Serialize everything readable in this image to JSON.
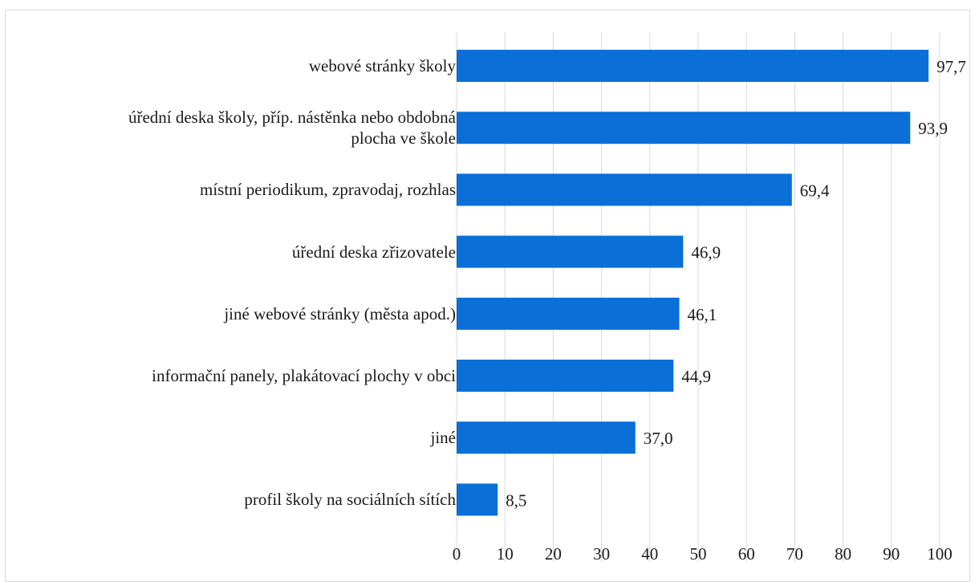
{
  "chart_data": {
    "type": "bar",
    "orientation": "horizontal",
    "categories": [
      "webové stránky školy",
      "úřední deska školy, příp. nástěnka nebo obdobná\nplocha ve škole",
      "místní periodikum, zpravodaj, rozhlas",
      "úřední deska zřizovatele",
      "jiné webové stránky (města apod.)",
      "informační panely, plakátovací plochy v obci",
      "jiné",
      "profil školy na sociálních sítích"
    ],
    "values": [
      97.7,
      93.9,
      69.4,
      46.9,
      46.1,
      44.9,
      37.0,
      8.5
    ],
    "value_labels": [
      "97,7",
      "93,9",
      "69,4",
      "46,9",
      "46,1",
      "44,9",
      "37,0",
      "8,5"
    ],
    "xlim": [
      0,
      100
    ],
    "xticks": [
      "0",
      "10",
      "20",
      "30",
      "40",
      "50",
      "60",
      "70",
      "80",
      "90",
      "100"
    ],
    "grid": true,
    "bar_color": "#0a6fd6"
  }
}
